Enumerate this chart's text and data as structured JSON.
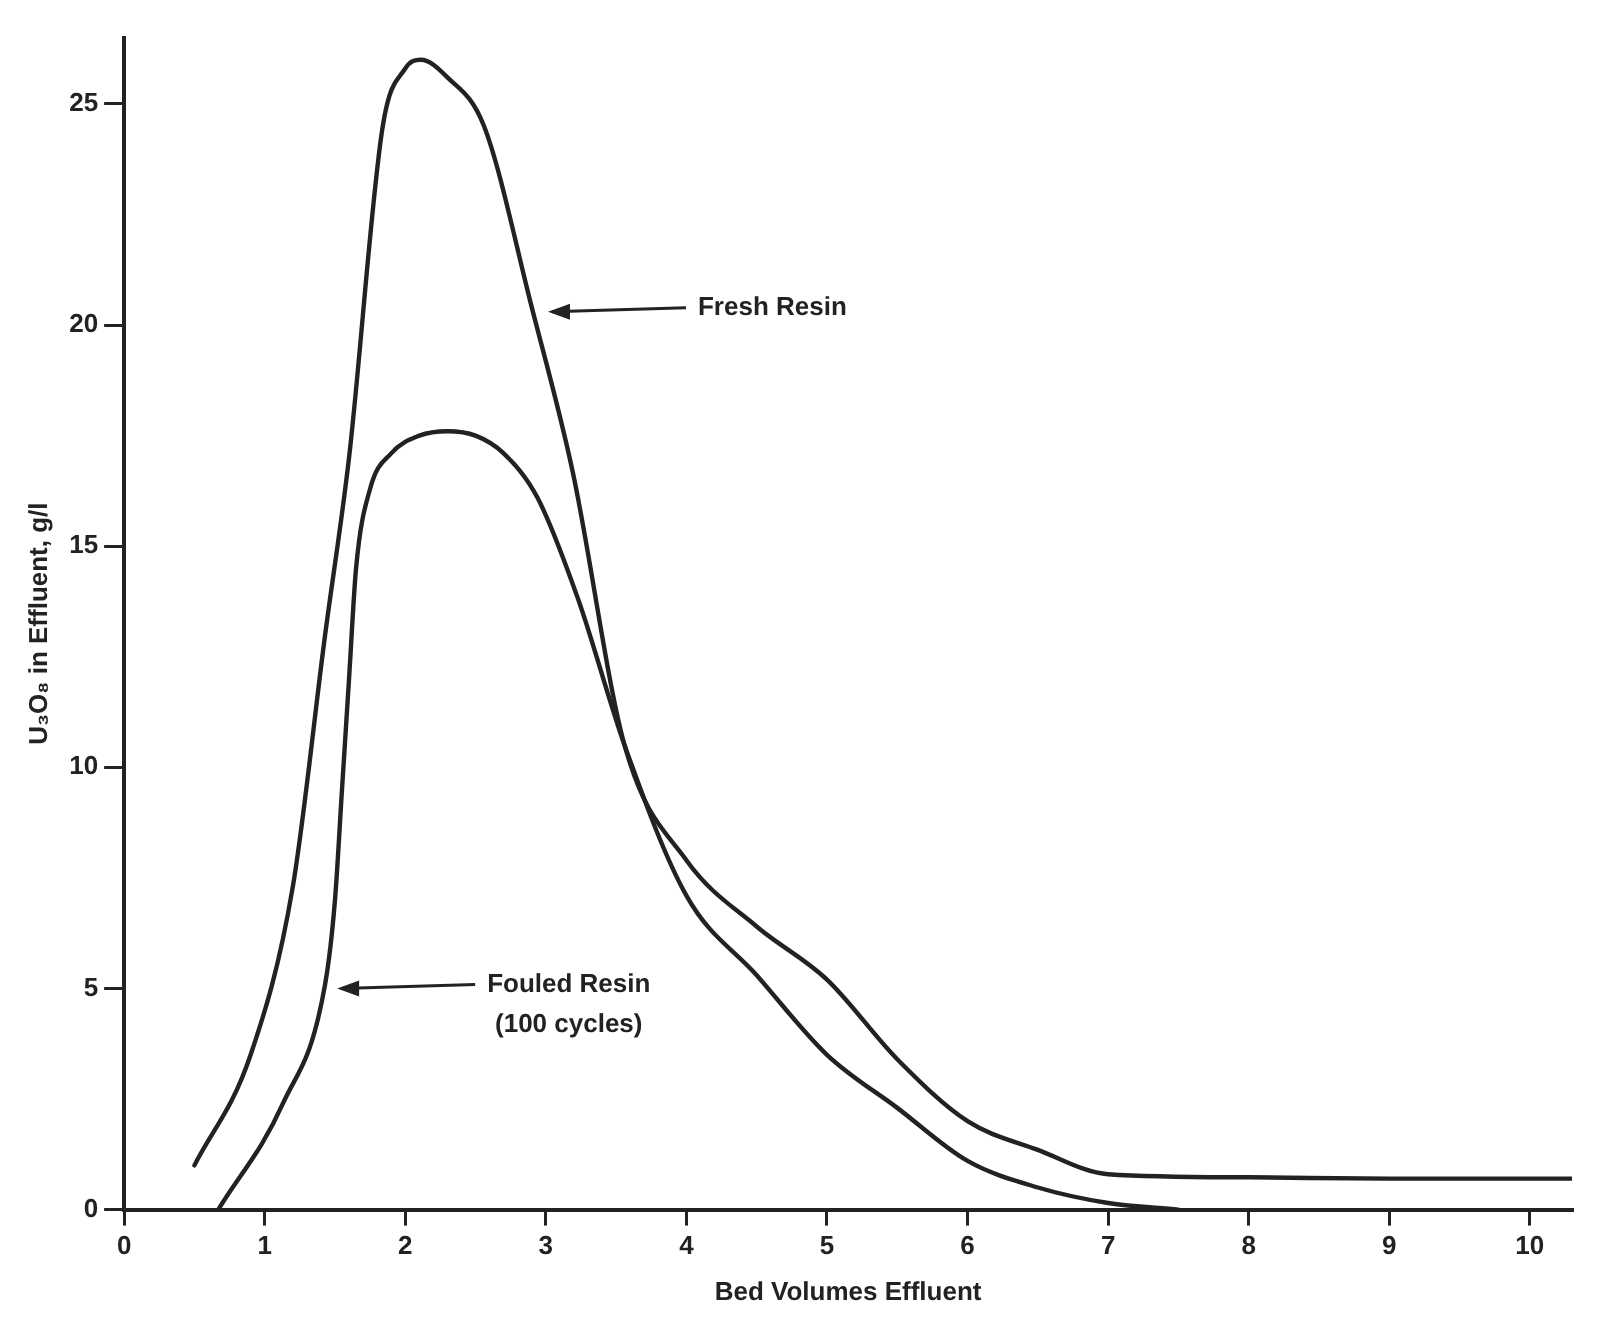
{
  "chart_data": {
    "type": "line",
    "xlabel": "Bed Volumes Effluent",
    "ylabel": "U₃O₈ in Effluent, g/l",
    "xlim": [
      0,
      10.3
    ],
    "ylim": [
      0,
      26.5
    ],
    "xticks": [
      0,
      1,
      2,
      3,
      4,
      5,
      6,
      7,
      8,
      9,
      10
    ],
    "yticks": [
      0,
      5,
      10,
      15,
      20,
      25
    ],
    "grid": false,
    "legend": false,
    "marker": "none",
    "line_style": "solid",
    "series": [
      {
        "color": "#222222",
        "x": [
          0.5,
          0.9,
          1.2,
          1.43,
          1.6,
          1.84,
          2.0,
          2.11,
          2.3,
          2.56,
          2.9,
          3.19,
          3.56,
          4.0,
          4.5,
          5.0,
          5.5,
          6.0,
          6.5,
          7.0,
          8.0,
          9.0,
          10.3
        ],
        "values": [
          1.0,
          3.5,
          7.3,
          13,
          17,
          24.5,
          25.8,
          26,
          25.6,
          24.5,
          20.4,
          16.7,
          10.5,
          7.9,
          6.4,
          5.2,
          3.4,
          2.0,
          1.35,
          0.8,
          0.73,
          0.7,
          0.7
        ]
      },
      {
        "color": "#222222",
        "x": [
          0.67,
          1.13,
          1.43,
          1.5,
          1.55,
          1.6,
          1.65,
          1.75,
          1.9,
          2.1,
          2.3,
          2.5,
          2.7,
          2.94,
          3.23,
          3.56,
          4.0,
          4.5,
          5.0,
          5.5,
          6.0,
          6.5,
          7.0,
          7.5
        ],
        "values": [
          0,
          2.4,
          5.1,
          7,
          9.5,
          12,
          14.5,
          16.3,
          17.1,
          17.5,
          17.6,
          17.5,
          17.1,
          16.1,
          13.8,
          10.5,
          7.1,
          5.3,
          3.5,
          2.3,
          1.1,
          0.5,
          0.15,
          0
        ]
      }
    ],
    "annotations": [
      {
        "text": "Fresh Resin",
        "x": 2.93,
        "y": 20.3
      },
      {
        "text": "Fouled Resin (100 cycles)",
        "x": 1.43,
        "y": 5.0
      }
    ]
  }
}
